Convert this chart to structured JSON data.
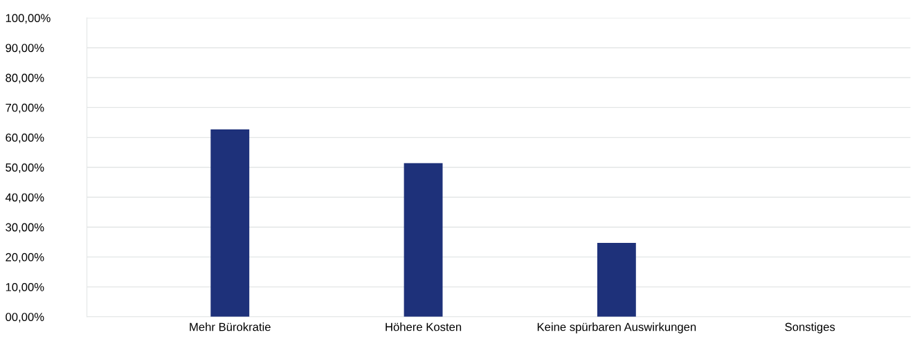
{
  "chart_data": {
    "type": "bar",
    "categories": [
      "Mehr Bürokratie",
      "Höhere Kosten",
      "Keine spürbaren Auswirkungen",
      "Sonstiges"
    ],
    "values": [
      62.7,
      51.4,
      24.7,
      0
    ],
    "color": "#1e317a",
    "ylim": [
      0,
      100
    ],
    "yticks": [
      {
        "value": 0,
        "label": "00,00%"
      },
      {
        "value": 10,
        "label": "10,00%"
      },
      {
        "value": 20,
        "label": "20,00%"
      },
      {
        "value": 30,
        "label": "30,00%"
      },
      {
        "value": 40,
        "label": "40,00%"
      },
      {
        "value": 50,
        "label": "50,00%"
      },
      {
        "value": 60,
        "label": "60,00%"
      },
      {
        "value": 70,
        "label": "70,00%"
      },
      {
        "value": 80,
        "label": "80,00%"
      },
      {
        "value": 90,
        "label": "90,00%"
      },
      {
        "value": 100,
        "label": "100,00%"
      }
    ],
    "grid": "y"
  }
}
